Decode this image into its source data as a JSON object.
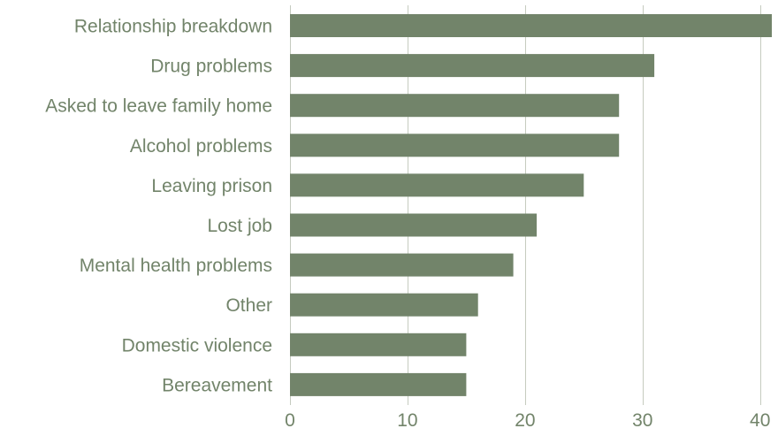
{
  "chart_data": {
    "type": "bar",
    "orientation": "horizontal",
    "categories": [
      "Relationship breakdown",
      "Drug problems",
      "Asked to leave family home",
      "Alcohol problems",
      "Leaving prison",
      "Lost job",
      "Mental health problems",
      "Other",
      "Domestic violence",
      "Bereavement"
    ],
    "values": [
      41,
      31,
      28,
      28,
      25,
      21,
      19,
      16,
      15,
      15
    ],
    "xlim": [
      0,
      41
    ],
    "ticks": [
      0,
      10,
      20,
      30,
      40
    ],
    "tick_labels": [
      "0",
      "10",
      "20",
      "30",
      "40"
    ],
    "grid": true,
    "title": "",
    "xlabel": "",
    "ylabel": "",
    "colors": {
      "bar": "#72846a",
      "text": "#72846a",
      "grid": "#c5cbbf"
    }
  }
}
